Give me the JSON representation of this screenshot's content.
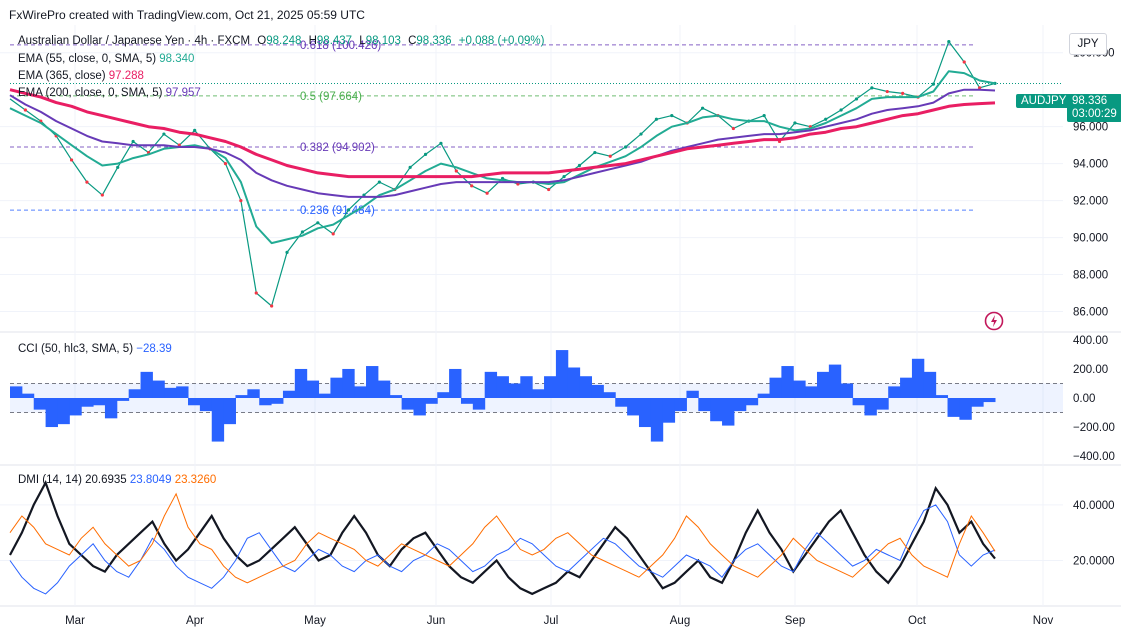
{
  "header": {
    "created": "FxWirePro created with TradingView.com, Oct 21, 2025 05:59 UTC"
  },
  "symbol": {
    "title": "Australian Dollar / Japanese Yen · 4h · FXCM",
    "open_label": "O",
    "open": "98.248",
    "high_label": "H",
    "high": "98.437",
    "low_label": "L",
    "low": "98.103",
    "close_label": "C",
    "close": "98.336",
    "change": "+0.088 (+0.09%)",
    "ticker": "AUDJPY",
    "currency": "JPY",
    "last_price": "98.336",
    "countdown": "03:00:29"
  },
  "indicators": {
    "ema55": {
      "label": "EMA (55, close, 0, SMA, 5)",
      "value": "98.340",
      "color": "#22ab94"
    },
    "ema365": {
      "label": "EMA (365, close)",
      "value": "97.288",
      "color": "#e91e63"
    },
    "ema200": {
      "label": "EMA (200, close, 0, SMA, 5)",
      "value": "97.957",
      "color": "#673ab7"
    },
    "cci": {
      "label": "CCI (50, hlc3, SMA, 5)",
      "value": "−28.39",
      "color": "#2962ff"
    },
    "dmi": {
      "label": "DMI (14, 14)",
      "adx": "20.6935",
      "plus_di": "23.8049",
      "minus_di": "23.3260",
      "adx_color": "#131722",
      "plus_color": "#2962ff",
      "minus_color": "#ff6d00"
    }
  },
  "fib_levels": [
    {
      "label": "0.618 (100.426)",
      "price": 100.426,
      "color": "#673ab7"
    },
    {
      "label": "0.5 (97.664)",
      "price": 97.664,
      "color": "#4caf50"
    },
    {
      "label": "0.382 (94.902)",
      "price": 94.902,
      "color": "#673ab7"
    },
    {
      "label": "0.236 (91.484)",
      "price": 91.484,
      "color": "#2962ff"
    }
  ],
  "chart_data": [
    {
      "type": "line",
      "title": "Australian Dollar / Japanese Yen · 4h · FXCM",
      "x_ticks": [
        "Mar",
        "Apr",
        "May",
        "Jun",
        "Jul",
        "Aug",
        "Sep",
        "Oct",
        "Nov"
      ],
      "y_ticks": [
        "86.000",
        "88.000",
        "90.000",
        "92.000",
        "94.000",
        "96.000",
        "100.000"
      ],
      "ylim": [
        85,
        101.5
      ],
      "series": [
        {
          "name": "AUDJPY",
          "color": "#089981",
          "values": [
            97.5,
            96.9,
            96.3,
            95.5,
            94.2,
            93.0,
            92.3,
            93.8,
            95.2,
            94.6,
            95.6,
            95.0,
            95.8,
            94.8,
            94.0,
            92.0,
            87.0,
            86.3,
            89.2,
            90.3,
            90.8,
            90.2,
            91.5,
            92.3,
            93.0,
            92.6,
            93.8,
            94.5,
            95.1,
            93.6,
            92.8,
            92.4,
            93.2,
            92.9,
            93.0,
            92.6,
            93.3,
            93.9,
            94.6,
            94.4,
            94.9,
            95.6,
            96.4,
            96.6,
            96.2,
            97.0,
            96.6,
            95.9,
            96.3,
            96.6,
            95.2,
            96.2,
            96.0,
            96.4,
            96.9,
            97.5,
            98.1,
            97.9,
            97.8,
            97.6,
            98.3,
            100.6,
            99.5,
            98.1,
            98.34
          ]
        },
        {
          "name": "EMA (55, close, 0, SMA, 5)",
          "color": "#22ab94",
          "values": [
            97.0,
            96.6,
            96.2,
            95.6,
            95.0,
            94.4,
            93.9,
            94.0,
            94.3,
            94.5,
            94.8,
            94.9,
            95.0,
            94.8,
            94.3,
            93.0,
            90.6,
            89.7,
            89.9,
            90.1,
            90.5,
            90.7,
            91.2,
            91.7,
            92.3,
            92.6,
            93.1,
            93.6,
            94.0,
            93.8,
            93.5,
            93.2,
            93.1,
            93.0,
            93.0,
            92.9,
            93.0,
            93.4,
            93.8,
            94.1,
            94.4,
            94.9,
            95.5,
            96.0,
            96.2,
            96.5,
            96.6,
            96.4,
            96.3,
            96.3,
            96.0,
            95.8,
            95.9,
            96.2,
            96.6,
            97.0,
            97.5,
            97.6,
            97.6,
            97.6,
            97.9,
            99.0,
            98.9,
            98.5,
            98.34
          ]
        },
        {
          "name": "EMA (200, close, 0, SMA, 5)",
          "color": "#673ab7",
          "values": [
            97.7,
            97.2,
            96.8,
            96.3,
            95.9,
            95.5,
            95.2,
            95.1,
            95.0,
            95.0,
            95.0,
            94.9,
            94.9,
            94.8,
            94.6,
            94.2,
            93.5,
            93.1,
            92.8,
            92.6,
            92.4,
            92.3,
            92.2,
            92.2,
            92.2,
            92.3,
            92.5,
            92.7,
            92.9,
            93.0,
            93.0,
            93.0,
            93.0,
            93.0,
            93.0,
            93.0,
            93.1,
            93.3,
            93.5,
            93.7,
            93.9,
            94.1,
            94.4,
            94.7,
            94.9,
            95.1,
            95.3,
            95.4,
            95.5,
            95.6,
            95.6,
            95.7,
            95.8,
            96.0,
            96.2,
            96.4,
            96.7,
            96.9,
            97.0,
            97.1,
            97.3,
            97.8,
            98.0,
            98.0,
            97.957
          ]
        },
        {
          "name": "EMA (365, close)",
          "color": "#e91e63",
          "values": [
            98.0,
            97.8,
            97.6,
            97.3,
            97.1,
            96.8,
            96.6,
            96.4,
            96.2,
            96.0,
            95.9,
            95.7,
            95.6,
            95.4,
            95.2,
            94.9,
            94.5,
            94.2,
            93.9,
            93.7,
            93.5,
            93.4,
            93.3,
            93.3,
            93.3,
            93.3,
            93.3,
            93.3,
            93.3,
            93.3,
            93.3,
            93.4,
            93.5,
            93.5,
            93.5,
            93.5,
            93.6,
            93.7,
            93.8,
            93.9,
            94.0,
            94.2,
            94.4,
            94.6,
            94.8,
            94.9,
            95.0,
            95.1,
            95.2,
            95.3,
            95.3,
            95.4,
            95.6,
            95.7,
            95.9,
            96.0,
            96.2,
            96.4,
            96.6,
            96.7,
            96.9,
            97.1,
            97.2,
            97.25,
            97.288
          ]
        }
      ]
    },
    {
      "type": "bar",
      "title": "CCI (50, hlc3, SMA, 5)",
      "y_ticks": [
        "400.00",
        "200.00",
        "0.00",
        "−200.00",
        "−400.00"
      ],
      "ylim": [
        -420,
        420
      ],
      "series": [
        {
          "name": "CCI",
          "color": "#2962ff",
          "values": [
            80,
            30,
            -80,
            -200,
            -180,
            -120,
            -60,
            -50,
            -140,
            -20,
            60,
            180,
            120,
            70,
            80,
            -50,
            -90,
            -300,
            -180,
            20,
            60,
            -50,
            -40,
            50,
            200,
            120,
            30,
            140,
            200,
            80,
            220,
            120,
            20,
            -80,
            -120,
            -40,
            40,
            200,
            -40,
            -80,
            180,
            150,
            100,
            150,
            60,
            150,
            330,
            210,
            150,
            90,
            40,
            -60,
            -120,
            -200,
            -300,
            -170,
            -90,
            50,
            -90,
            -160,
            -190,
            -90,
            -50,
            30,
            140,
            220,
            120,
            80,
            180,
            230,
            100,
            -50,
            -120,
            -80,
            80,
            140,
            270,
            180,
            20,
            -130,
            -150,
            -60,
            -28
          ]
        }
      ]
    },
    {
      "type": "line",
      "title": "DMI (14, 14)",
      "y_ticks": [
        "40.0000",
        "20.0000"
      ],
      "ylim": [
        4,
        54
      ],
      "series": [
        {
          "name": "ADX",
          "color": "#131722",
          "values": [
            22,
            30,
            40,
            48,
            36,
            26,
            22,
            18,
            16,
            22,
            26,
            30,
            34,
            26,
            20,
            24,
            30,
            36,
            28,
            22,
            18,
            20,
            24,
            28,
            32,
            26,
            20,
            22,
            30,
            36,
            30,
            22,
            18,
            24,
            28,
            30,
            24,
            18,
            14,
            12,
            16,
            20,
            14,
            10,
            8,
            10,
            12,
            16,
            14,
            20,
            26,
            32,
            28,
            22,
            16,
            10,
            12,
            16,
            20,
            14,
            12,
            20,
            30,
            38,
            30,
            24,
            16,
            22,
            28,
            34,
            38,
            30,
            22,
            16,
            12,
            18,
            26,
            34,
            46,
            40,
            30,
            34,
            26,
            20.69
          ]
        },
        {
          "name": "+DI",
          "color": "#2962ff",
          "values": [
            20,
            14,
            10,
            8,
            12,
            18,
            22,
            26,
            20,
            16,
            14,
            20,
            28,
            24,
            18,
            14,
            12,
            10,
            14,
            20,
            28,
            30,
            24,
            18,
            16,
            20,
            24,
            22,
            18,
            16,
            20,
            22,
            18,
            16,
            20,
            22,
            26,
            24,
            20,
            16,
            18,
            22,
            24,
            28,
            26,
            22,
            18,
            16,
            20,
            24,
            28,
            26,
            22,
            18,
            16,
            14,
            18,
            22,
            20,
            18,
            14,
            20,
            24,
            26,
            22,
            18,
            16,
            24,
            30,
            26,
            22,
            18,
            20,
            24,
            22,
            20,
            30,
            38,
            40,
            34,
            22,
            18,
            22,
            23.8
          ]
        },
        {
          "name": "−DI",
          "color": "#ff6d00",
          "values": [
            30,
            36,
            32,
            26,
            24,
            22,
            28,
            32,
            26,
            22,
            18,
            20,
            26,
            36,
            44,
            32,
            26,
            24,
            18,
            14,
            12,
            14,
            16,
            18,
            20,
            26,
            30,
            28,
            26,
            24,
            20,
            18,
            22,
            26,
            24,
            22,
            20,
            18,
            22,
            26,
            32,
            36,
            30,
            24,
            22,
            24,
            28,
            30,
            26,
            22,
            20,
            18,
            16,
            14,
            18,
            22,
            28,
            36,
            32,
            26,
            22,
            18,
            16,
            14,
            18,
            22,
            28,
            24,
            20,
            18,
            16,
            14,
            18,
            22,
            26,
            28,
            22,
            18,
            16,
            14,
            26,
            36,
            30,
            23.33
          ]
        }
      ]
    }
  ]
}
